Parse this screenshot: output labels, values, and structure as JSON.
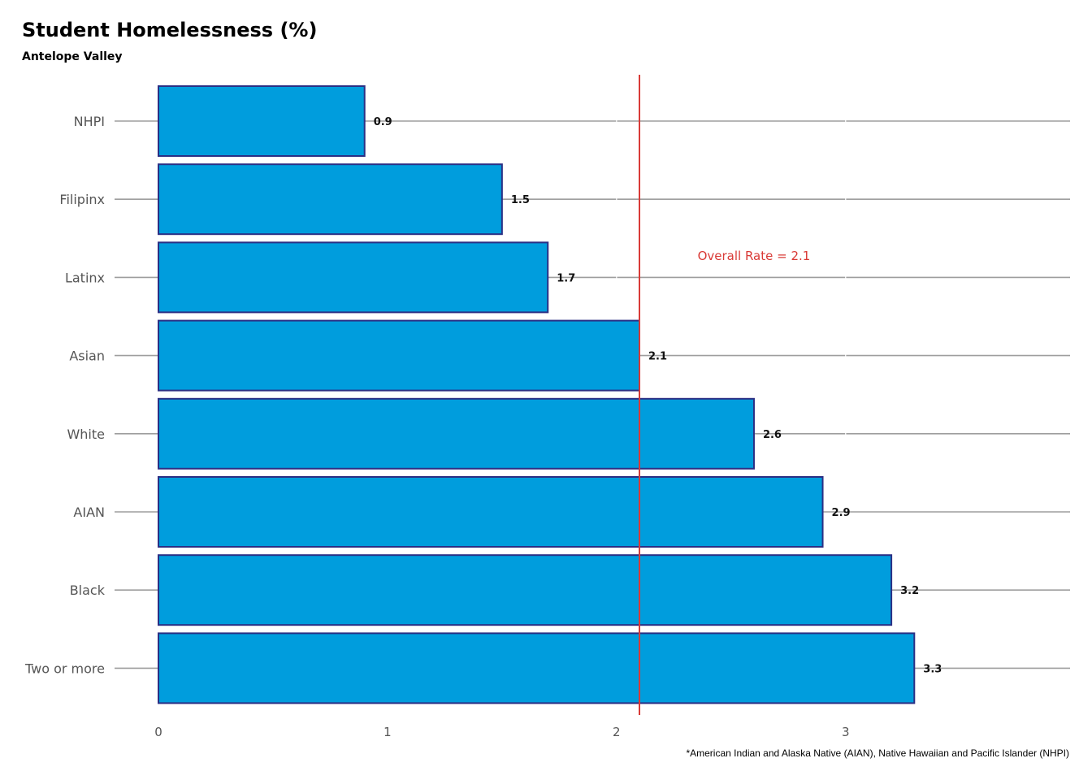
{
  "chart_data": {
    "type": "bar",
    "orientation": "horizontal",
    "title": "Student Homelessness (%)",
    "subtitle": "Antelope Valley",
    "categories": [
      "NHPI",
      "Filipinx",
      "Latinx",
      "Asian",
      "White",
      "AIAN",
      "Black",
      "Two or more"
    ],
    "values": [
      0.9,
      1.5,
      1.7,
      2.1,
      2.6,
      2.9,
      3.2,
      3.3
    ],
    "value_labels": [
      "0.9",
      "1.5",
      "1.7",
      "2.1",
      "2.6",
      "2.9",
      "3.2",
      "3.3"
    ],
    "x_ticks": [
      "0",
      "1",
      "2",
      "3"
    ],
    "x_tick_values": [
      0,
      1,
      2,
      3
    ],
    "xlim": [
      0,
      3.98
    ],
    "xlabel": "",
    "ylabel": "",
    "grid": true,
    "legend": "none",
    "reference_line": {
      "value": 2.1,
      "label": "Overall Rate = 2.1",
      "label_at": 2.6
    },
    "footnote": "*American Indian and Alaska Native (AIAN), Native Hawaiian and Pacific Islander (NHPI)",
    "colors": {
      "bar_fill": "#009ddd",
      "bar_stroke": "#2b2f84",
      "grid": "#9e9e9e",
      "reference": "#d93a36"
    }
  }
}
